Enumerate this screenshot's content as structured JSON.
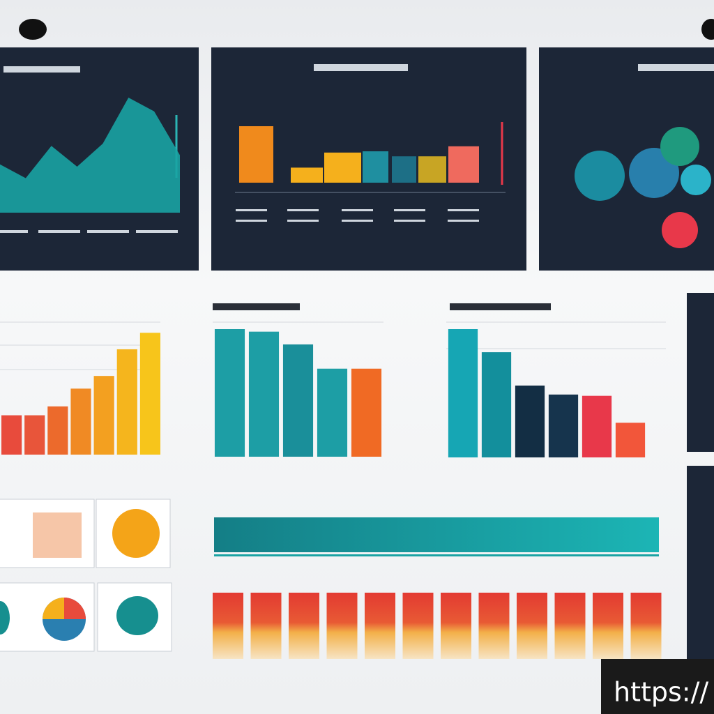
{
  "top_area": {
    "type": "area",
    "values": [
      42,
      30,
      58,
      40,
      60,
      100,
      88,
      50
    ],
    "color": "#1aa3a3",
    "ylim": [
      0,
      100
    ]
  },
  "top_bars": {
    "type": "bar",
    "values": [
      90,
      24,
      48,
      50,
      42,
      42,
      58
    ],
    "colors": [
      "#f08a1c",
      "#f5b01c",
      "#f5b01c",
      "#1f8fa0",
      "#1d6f86",
      "#c8a524",
      "#ef6a5e"
    ],
    "ylim": [
      0,
      100
    ]
  },
  "mid_left_bars": {
    "type": "bar",
    "values": [
      31,
      31,
      38,
      52,
      62,
      83,
      96
    ],
    "colors": [
      "#e84b3c",
      "#e8553a",
      "#ec6a2c",
      "#f08a24",
      "#f3a020",
      "#f5b51d",
      "#f7c51b"
    ],
    "ylim": [
      0,
      100
    ]
  },
  "mid_center_bars": {
    "type": "bar",
    "values": [
      100,
      98,
      88,
      69,
      69
    ],
    "colors": [
      "#1d9ea5",
      "#1d9ea5",
      "#1a8f9a",
      "#1d9ea5",
      "#f06a24"
    ],
    "ylim": [
      0,
      100
    ]
  },
  "mid_right_bars": {
    "type": "bar",
    "values": [
      100,
      82,
      56,
      49,
      48,
      27
    ],
    "colors": [
      "#16a6b4",
      "#138f9c",
      "#132e44",
      "#16344d",
      "#e8384a",
      "#f2563a"
    ],
    "ylim": [
      0,
      100
    ]
  },
  "watermark": "https://"
}
